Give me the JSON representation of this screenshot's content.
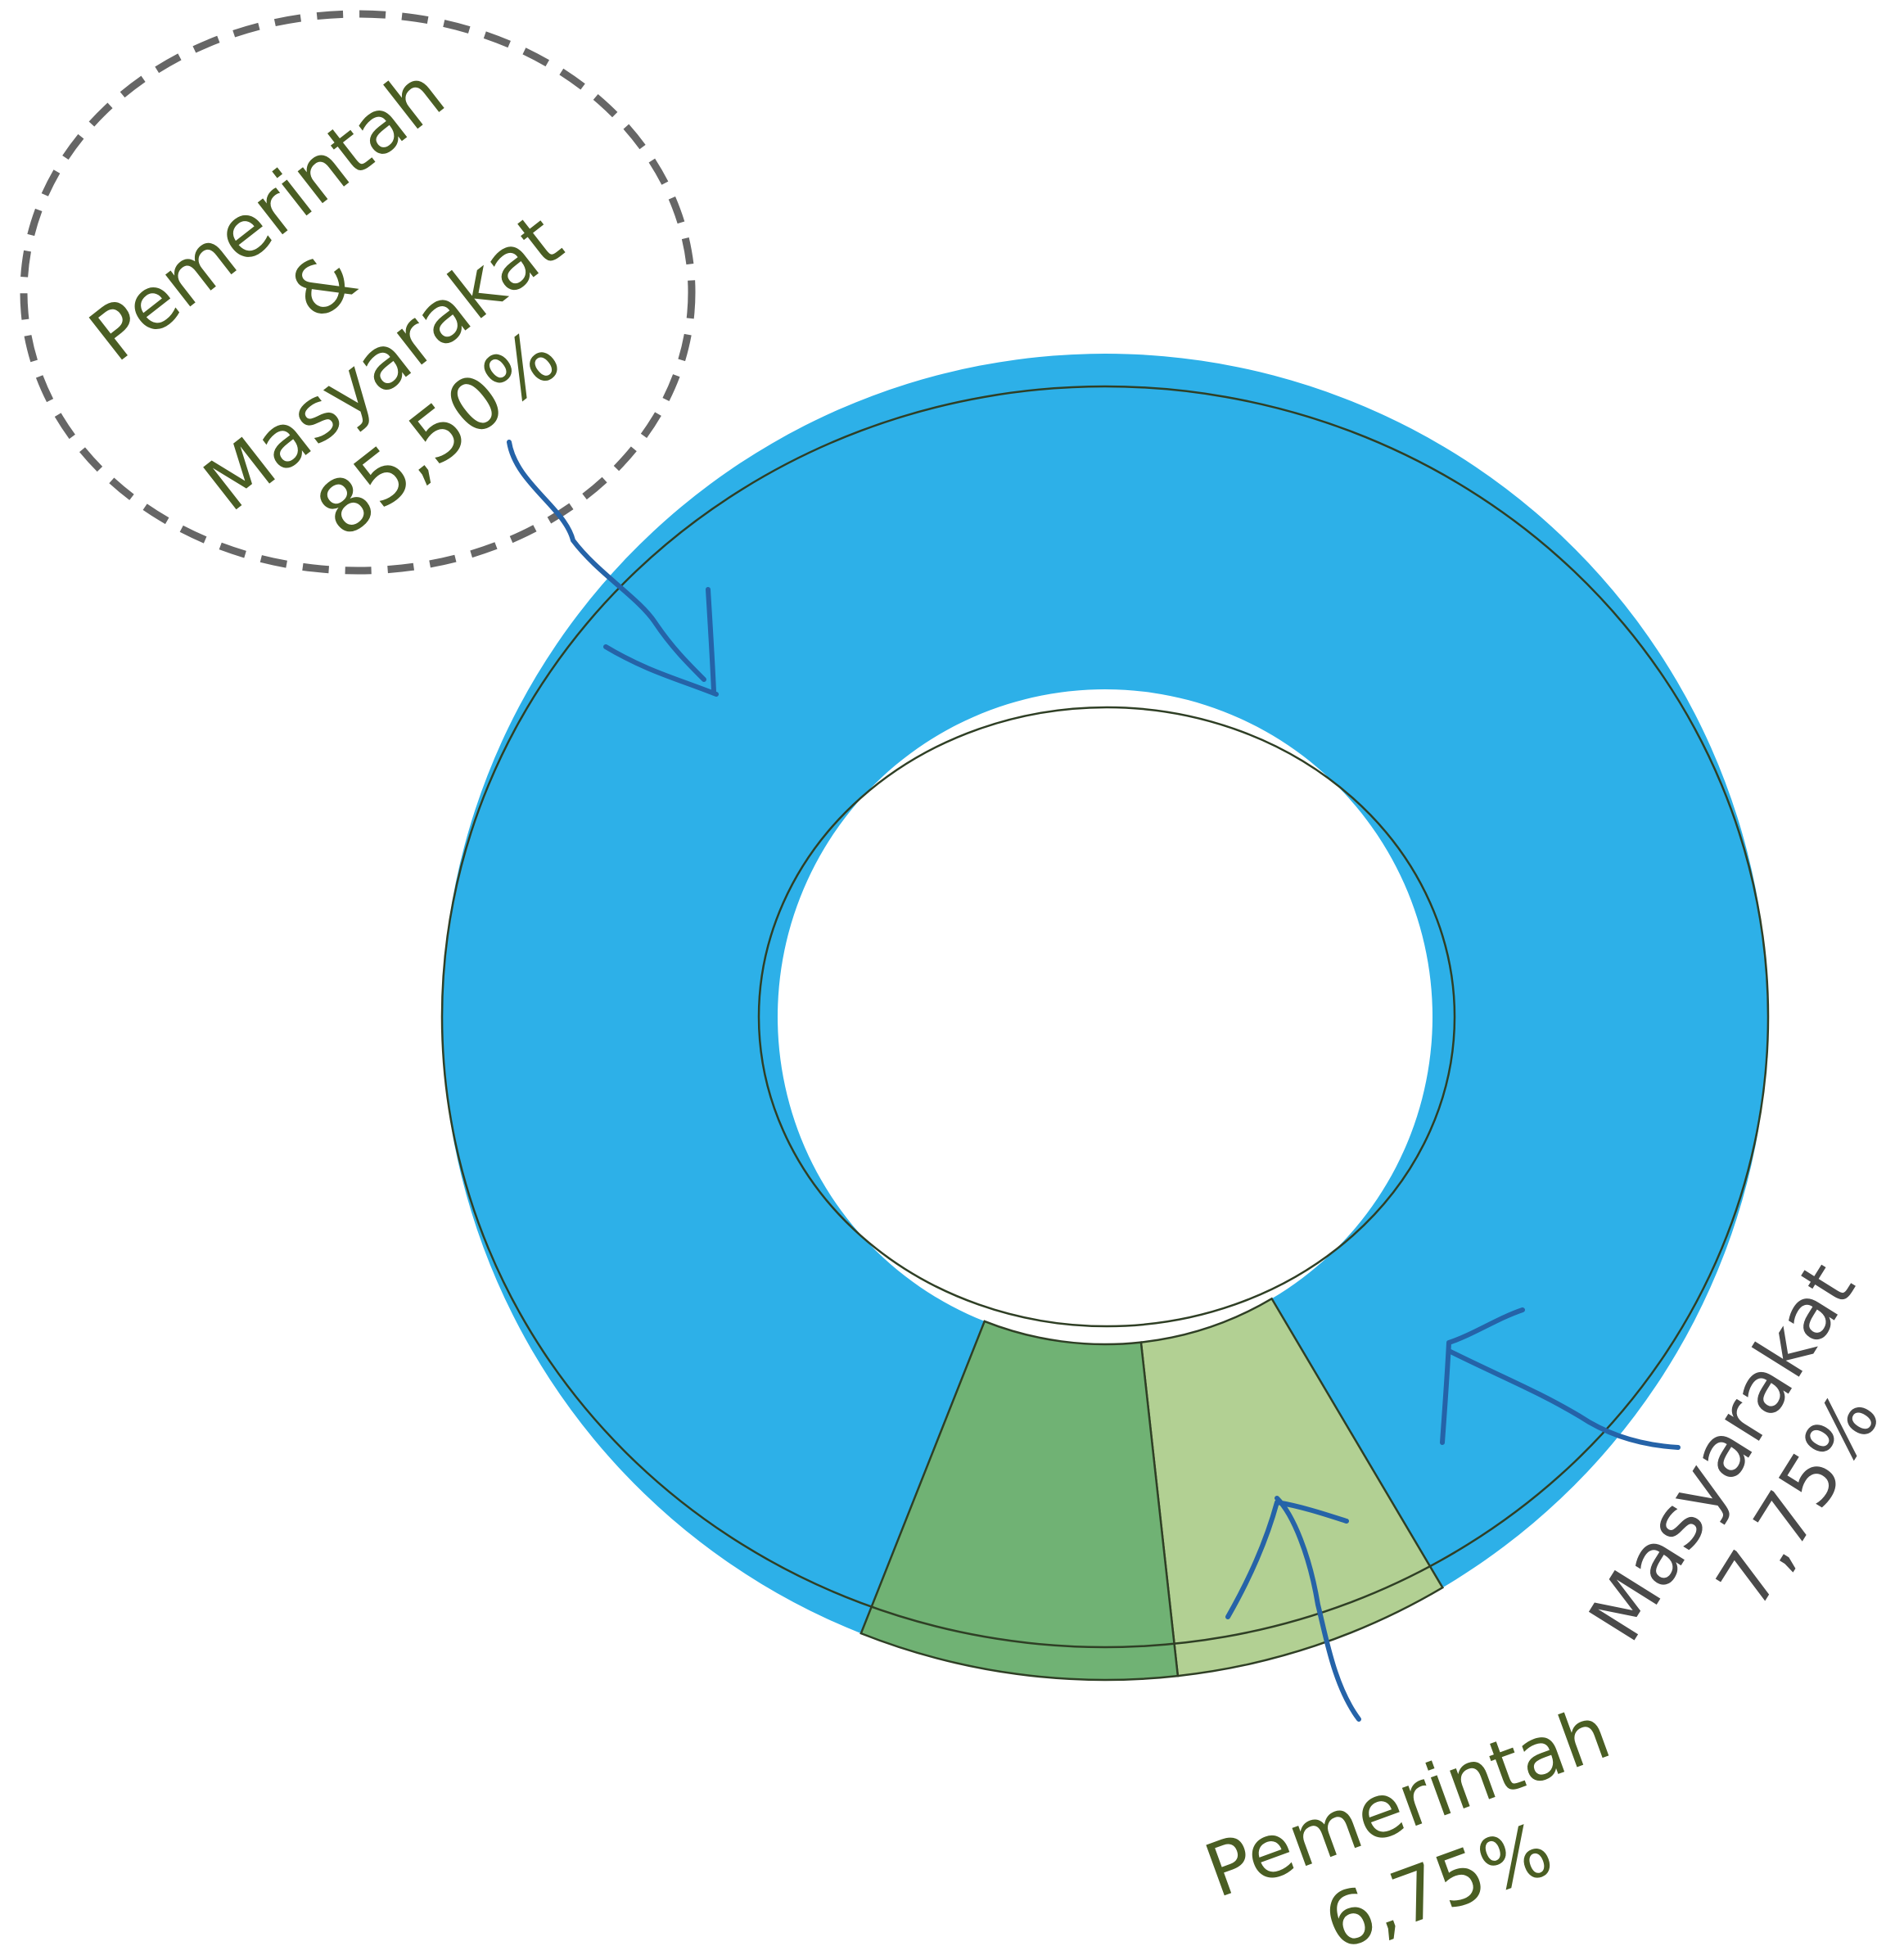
{
  "chart_data": {
    "type": "pie",
    "donut": true,
    "categories": [
      "Pemerintah & Masyarakat",
      "Pemerintah",
      "Masyarakat"
    ],
    "values": [
      85.5,
      6.75,
      7.75
    ],
    "colors": [
      "#2db0e8",
      "#b2d093",
      "#70b274"
    ],
    "label_colors": [
      "#4a5e23",
      "#4a5e23",
      "#4a4a4a"
    ],
    "labels": [
      {
        "name_lines": [
          "Pemerintah",
          "&",
          "Masyarakat"
        ],
        "value_text": "85,50%"
      },
      {
        "name_lines": [
          "Pemerintah"
        ],
        "value_text": "6,75%"
      },
      {
        "name_lines": [
          "Masyarakat"
        ],
        "value_text": "7,75%"
      }
    ],
    "title": "",
    "legend": "none"
  }
}
